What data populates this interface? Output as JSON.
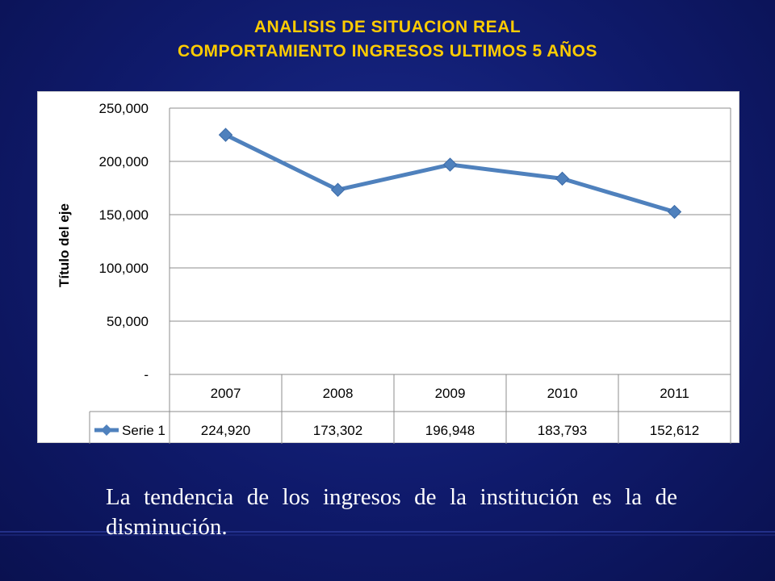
{
  "header": {
    "title_line1": "ANALISIS DE SITUACION REAL",
    "title_line2": "COMPORTAMIENTO INGRESOS ULTIMOS 5 AÑOS"
  },
  "caption": "La tendencia de los ingresos de la institución es la de disminución.",
  "colors": {
    "title": "#ffcc00",
    "series": "#4f81bd",
    "background": "#0f1a6b"
  },
  "chart_data": {
    "type": "line",
    "ylabel": "Título del eje",
    "categories": [
      "2007",
      "2008",
      "2009",
      "2010",
      "2011"
    ],
    "series": [
      {
        "name": "Serie 1",
        "values": [
          224920,
          173302,
          196948,
          183793,
          152612
        ],
        "value_labels": [
          "224,920",
          "173,302",
          "196,948",
          "183,793",
          "152,612"
        ]
      }
    ],
    "ylim": [
      0,
      250000
    ],
    "yticks": [
      0,
      50000,
      100000,
      150000,
      200000,
      250000
    ],
    "ytick_labels": [
      "-",
      "50,000",
      "100,000",
      "150,000",
      "200,000",
      "250,000"
    ],
    "grid": true,
    "legend": "data-table",
    "data_table": true
  }
}
